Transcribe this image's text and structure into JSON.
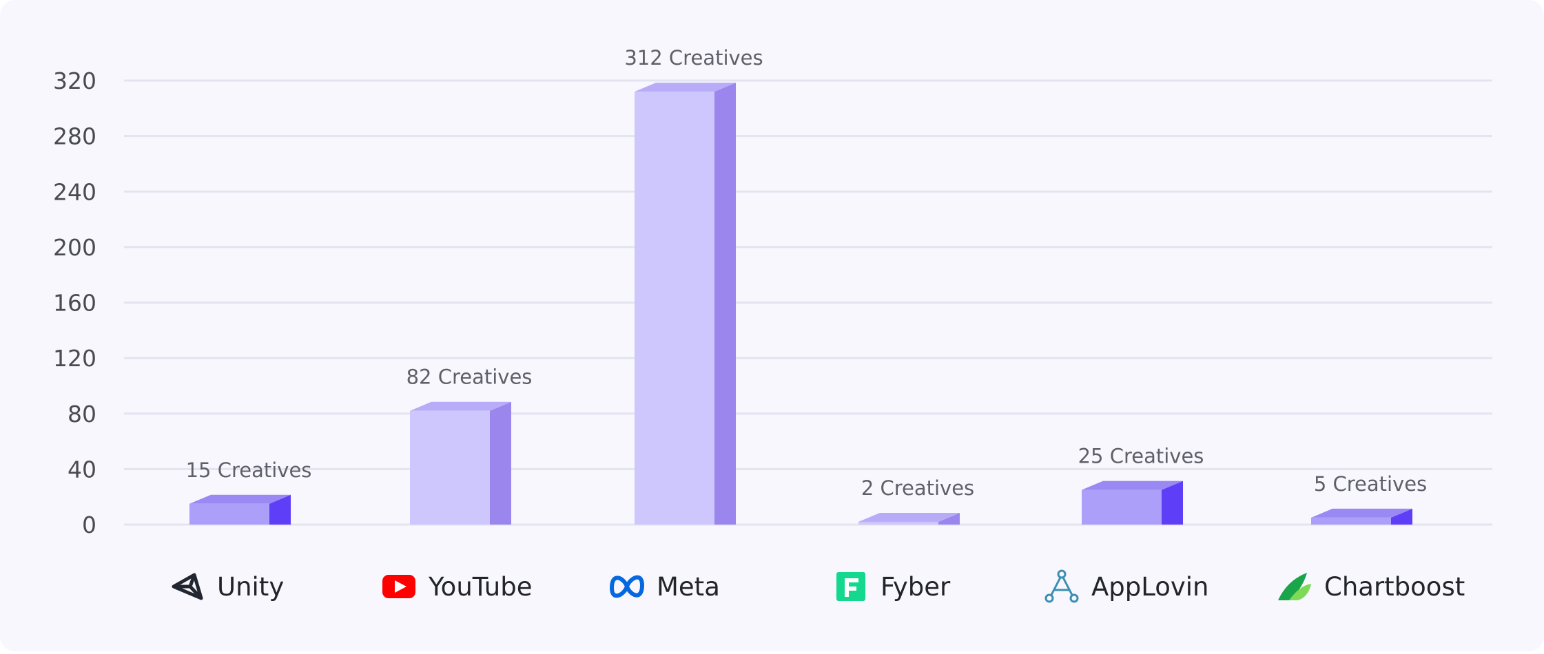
{
  "chart_data": {
    "type": "bar",
    "categories": [
      "Unity",
      "YouTube",
      "Meta",
      "Fyber",
      "AppLovin",
      "Chartboost"
    ],
    "values": [
      15,
      82,
      312,
      2,
      25,
      5
    ],
    "data_labels": [
      "15 Creatives",
      "82 Creatives",
      "312 Creatives",
      "2 Creatives",
      "25 Creatives",
      "5 Creatives"
    ],
    "category_icons": [
      "unity-logo-icon",
      "youtube-logo-icon",
      "meta-logo-icon",
      "fyber-logo-icon",
      "applovin-logo-icon",
      "chartboost-logo-icon"
    ],
    "ylim": [
      0,
      320
    ],
    "yticks": [
      0,
      40,
      80,
      120,
      160,
      200,
      240,
      280,
      320
    ],
    "grid": true,
    "legend": "none",
    "style": "3d",
    "bar_colors": [
      {
        "front": "#ab9ff9",
        "top": "#9a89f2",
        "side": "#5f3ef7"
      },
      {
        "front": "#cdc7fd",
        "top": "#b8acf8",
        "side": "#9b86ed"
      },
      {
        "front": "#cdc7fd",
        "top": "#b8acf8",
        "side": "#9b86ed"
      },
      {
        "front": "#cdc7fd",
        "top": "#b8acf8",
        "side": "#9b86ed"
      },
      {
        "front": "#ab9ff9",
        "top": "#9a89f2",
        "side": "#5f3ef7"
      },
      {
        "front": "#ab9ff9",
        "top": "#9a89f2",
        "side": "#5f3ef7"
      }
    ],
    "gridline_color": "#e4e4f1"
  }
}
